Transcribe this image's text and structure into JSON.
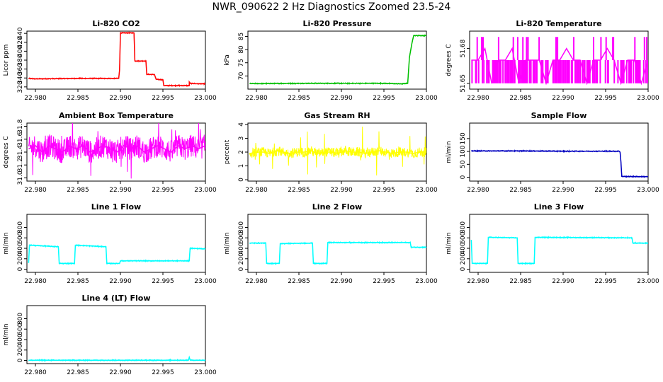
{
  "figure": {
    "title": "NWR_090622  2 Hz Diagnostics Zoomed 23.5-24"
  },
  "chart_data": [
    {
      "type": "line",
      "title": "Li-820 CO2",
      "ylabel": "Licor ppm",
      "xlim": [
        22.979,
        23.0
      ],
      "ylim": [
        315,
        445
      ],
      "xticks": [
        "22.980",
        "22.985",
        "22.990",
        "22.995",
        "23.000"
      ],
      "yticks": [
        "320",
        "340",
        "360",
        "380",
        "400",
        "420",
        "440"
      ],
      "color": "#ff0000",
      "series": [
        {
          "x": [
            22.9792,
            22.98,
            22.985,
            22.9898,
            22.9899,
            22.99,
            22.991,
            22.9916,
            22.9917,
            22.993,
            22.9931,
            22.994,
            22.9942,
            22.995,
            22.9951,
            22.9981,
            22.9981,
            22.9982,
            22.999,
            23.0
          ],
          "y": [
            339,
            338,
            339,
            339,
            358,
            441,
            441,
            441,
            378,
            378,
            348,
            348,
            337,
            336,
            323,
            323,
            331,
            328,
            327,
            327
          ]
        }
      ]
    },
    {
      "type": "line",
      "title": "Li-820 Pressure",
      "ylabel": "kPa",
      "xlim": [
        22.979,
        23.0
      ],
      "ylim": [
        65,
        87
      ],
      "xticks": [
        "22.980",
        "22.985",
        "22.990",
        "22.995",
        "23.000"
      ],
      "yticks": [
        "70",
        "75",
        "80",
        "85"
      ],
      "color": "#00c000",
      "series": [
        {
          "x": [
            22.9792,
            22.985,
            22.99,
            22.995,
            22.997,
            22.9978,
            22.998,
            22.9983,
            22.9985,
            23.0
          ],
          "y": [
            67.1,
            67.2,
            67.2,
            67.2,
            67.0,
            67.2,
            77.0,
            82.5,
            85.3,
            85.3
          ]
        }
      ]
    },
    {
      "type": "line",
      "title": "Li-820 Temperature",
      "ylabel": "degrees C",
      "xlim": [
        22.979,
        23.0
      ],
      "ylim": [
        51.645,
        51.695
      ],
      "xticks": [
        "22.980",
        "22.985",
        "22.990",
        "22.995",
        "23.000"
      ],
      "yticks": [
        "51.65",
        "51.68"
      ],
      "color": "#ff00ff",
      "series": [
        {
          "x": [
            22.9792,
            22.98,
            22.9808,
            22.9816,
            22.9824,
            22.9832,
            22.984,
            22.9848,
            22.9856,
            22.9864,
            22.9872,
            22.988,
            22.9888,
            22.9896,
            22.9904,
            22.9912,
            22.992,
            22.9928,
            22.9936,
            22.9944,
            22.9952,
            22.996,
            22.9968,
            22.9976,
            22.9984,
            22.9992,
            23.0
          ],
          "y": [
            51.67,
            51.67,
            51.68,
            51.65,
            51.67,
            51.67,
            51.68,
            51.65,
            51.67,
            51.67,
            51.67,
            51.65,
            51.67,
            51.67,
            51.68,
            51.67,
            51.67,
            51.65,
            51.67,
            51.67,
            51.68,
            51.67,
            51.65,
            51.67,
            51.67,
            51.65,
            51.67
          ]
        }
      ]
    },
    {
      "type": "line",
      "title": "Ambient Box Temperature",
      "ylabel": "degrees C",
      "xlim": [
        22.979,
        23.0
      ],
      "ylim": [
        30.95,
        31.85
      ],
      "xticks": [
        "22.980",
        "22.985",
        "22.990",
        "22.995",
        "23.000"
      ],
      "yticks": [
        "31.0",
        "31.2",
        "31.4",
        "31.6",
        "31.8"
      ],
      "color": "#ff00ff",
      "series": [
        {
          "x": [
            22.9792,
            22.98,
            22.9808,
            22.9816,
            22.9824,
            22.9832,
            22.984,
            22.9848,
            22.9856,
            22.9864,
            22.9872,
            22.988,
            22.9888,
            22.9896,
            22.9904,
            22.9912,
            22.992,
            22.9928,
            22.9936,
            22.9944,
            22.9952,
            22.996,
            22.9968,
            22.9976,
            22.9984,
            22.9992,
            23.0
          ],
          "y": [
            31.45,
            31.5,
            31.4,
            31.5,
            31.45,
            31.4,
            31.5,
            31.45,
            31.5,
            31.4,
            31.45,
            31.5,
            31.45,
            31.4,
            31.5,
            31.45,
            31.5,
            31.4,
            31.45,
            31.5,
            31.45,
            31.4,
            31.5,
            31.45,
            31.5,
            31.45,
            31.5
          ]
        }
      ]
    },
    {
      "type": "line",
      "title": "Gas Stream RH",
      "ylabel": "percent",
      "xlim": [
        22.979,
        23.0
      ],
      "ylim": [
        -0.1,
        4.1
      ],
      "xticks": [
        "22.980",
        "22.985",
        "22.990",
        "22.995",
        "23.000"
      ],
      "yticks": [
        "0",
        "1",
        "2",
        "3",
        "4"
      ],
      "color": "#ffff00",
      "series": [
        {
          "x": [
            22.9792,
            22.98,
            22.9808,
            22.9816,
            22.9824,
            22.9832,
            22.984,
            22.9848,
            22.9856,
            22.9864,
            22.9872,
            22.988,
            22.9888,
            22.9896,
            22.9904,
            22.9912,
            22.992,
            22.9928,
            22.9936,
            22.9944,
            22.9952,
            22.996,
            22.9968,
            22.9976,
            22.9984,
            22.9992,
            23.0
          ],
          "y": [
            1.9,
            2.0,
            2.0,
            1.9,
            2.1,
            2.0,
            1.9,
            2.0,
            2.0,
            2.1,
            1.9,
            2.0,
            2.0,
            1.9,
            2.1,
            2.0,
            2.0,
            1.9,
            2.0,
            2.1,
            2.0,
            1.9,
            2.0,
            2.0,
            1.9,
            2.0,
            2.0
          ]
        }
      ]
    },
    {
      "type": "line",
      "title": "Sample Flow",
      "ylabel": "ml/min",
      "xlim": [
        22.979,
        23.0
      ],
      "ylim": [
        -15,
        210
      ],
      "xticks": [
        "22.980",
        "22.985",
        "22.990",
        "22.995",
        "23.000"
      ],
      "yticks": [
        "0",
        "50",
        "100",
        "150"
      ],
      "color": "#0000c0",
      "series": [
        {
          "x": [
            22.9792,
            22.985,
            22.99,
            22.995,
            22.9966,
            22.9967,
            22.9968,
            22.9969,
            23.0
          ],
          "y": [
            102,
            102,
            101,
            101,
            101,
            97,
            60,
            3,
            2
          ]
        }
      ]
    },
    {
      "type": "line",
      "title": "Line 1 Flow",
      "ylabel": "ml/min",
      "xlim": [
        22.979,
        23.0
      ],
      "ylim": [
        -60,
        1050
      ],
      "xticks": [
        "22.980",
        "22.985",
        "22.990",
        "22.995",
        "23.000"
      ],
      "yticks": [
        "0",
        "200",
        "400",
        "600",
        "800"
      ],
      "color": "#00ffff",
      "series": [
        {
          "x": [
            22.9792,
            22.9793,
            22.9827,
            22.9828,
            22.9846,
            22.9847,
            22.9883,
            22.9884,
            22.9899,
            22.99,
            22.9981,
            22.9982,
            23.0
          ],
          "y": [
            120,
            460,
            430,
            110,
            110,
            460,
            430,
            110,
            110,
            160,
            160,
            400,
            390
          ]
        }
      ]
    },
    {
      "type": "line",
      "title": "Line 2 Flow",
      "ylabel": "ml/min",
      "xlim": [
        22.979,
        23.0
      ],
      "ylim": [
        -60,
        1050
      ],
      "xticks": [
        "22.980",
        "22.985",
        "22.990",
        "22.995",
        "23.000"
      ],
      "yticks": [
        "0",
        "200",
        "400",
        "600",
        "800"
      ],
      "color": "#00ffff",
      "series": [
        {
          "x": [
            22.9792,
            22.9811,
            22.9812,
            22.9827,
            22.9828,
            22.9866,
            22.9867,
            22.9883,
            22.9884,
            22.9981,
            22.9982,
            23.0
          ],
          "y": [
            500,
            500,
            110,
            110,
            490,
            500,
            110,
            110,
            510,
            510,
            420,
            420
          ]
        }
      ]
    },
    {
      "type": "line",
      "title": "Line 3 Flow",
      "ylabel": "ml/min",
      "xlim": [
        22.979,
        23.0
      ],
      "ylim": [
        -60,
        1050
      ],
      "xticks": [
        "22.980",
        "22.985",
        "22.990",
        "22.995",
        "23.000"
      ],
      "yticks": [
        "0",
        "200",
        "400",
        "600",
        "800"
      ],
      "color": "#00ffff",
      "series": [
        {
          "x": [
            22.9792,
            22.9793,
            22.9811,
            22.9812,
            22.9846,
            22.9847,
            22.9866,
            22.9867,
            22.9981,
            22.9982,
            23.0
          ],
          "y": [
            560,
            110,
            110,
            610,
            600,
            110,
            110,
            610,
            600,
            500,
            500
          ]
        }
      ]
    },
    {
      "type": "line",
      "title": "Line 4 (LT) Flow",
      "ylabel": "ml/min",
      "xlim": [
        22.979,
        23.0
      ],
      "ylim": [
        -60,
        1050
      ],
      "xticks": [
        "22.980",
        "22.985",
        "22.990",
        "22.995",
        "23.000"
      ],
      "yticks": [
        "0",
        "200",
        "400",
        "600",
        "800"
      ],
      "color": "#00ffff",
      "series": [
        {
          "x": [
            22.9792,
            22.985,
            22.99,
            22.995,
            22.998,
            22.9981,
            22.9982,
            22.9984,
            23.0
          ],
          "y": [
            5,
            5,
            5,
            5,
            5,
            60,
            10,
            5,
            5
          ]
        }
      ]
    }
  ]
}
